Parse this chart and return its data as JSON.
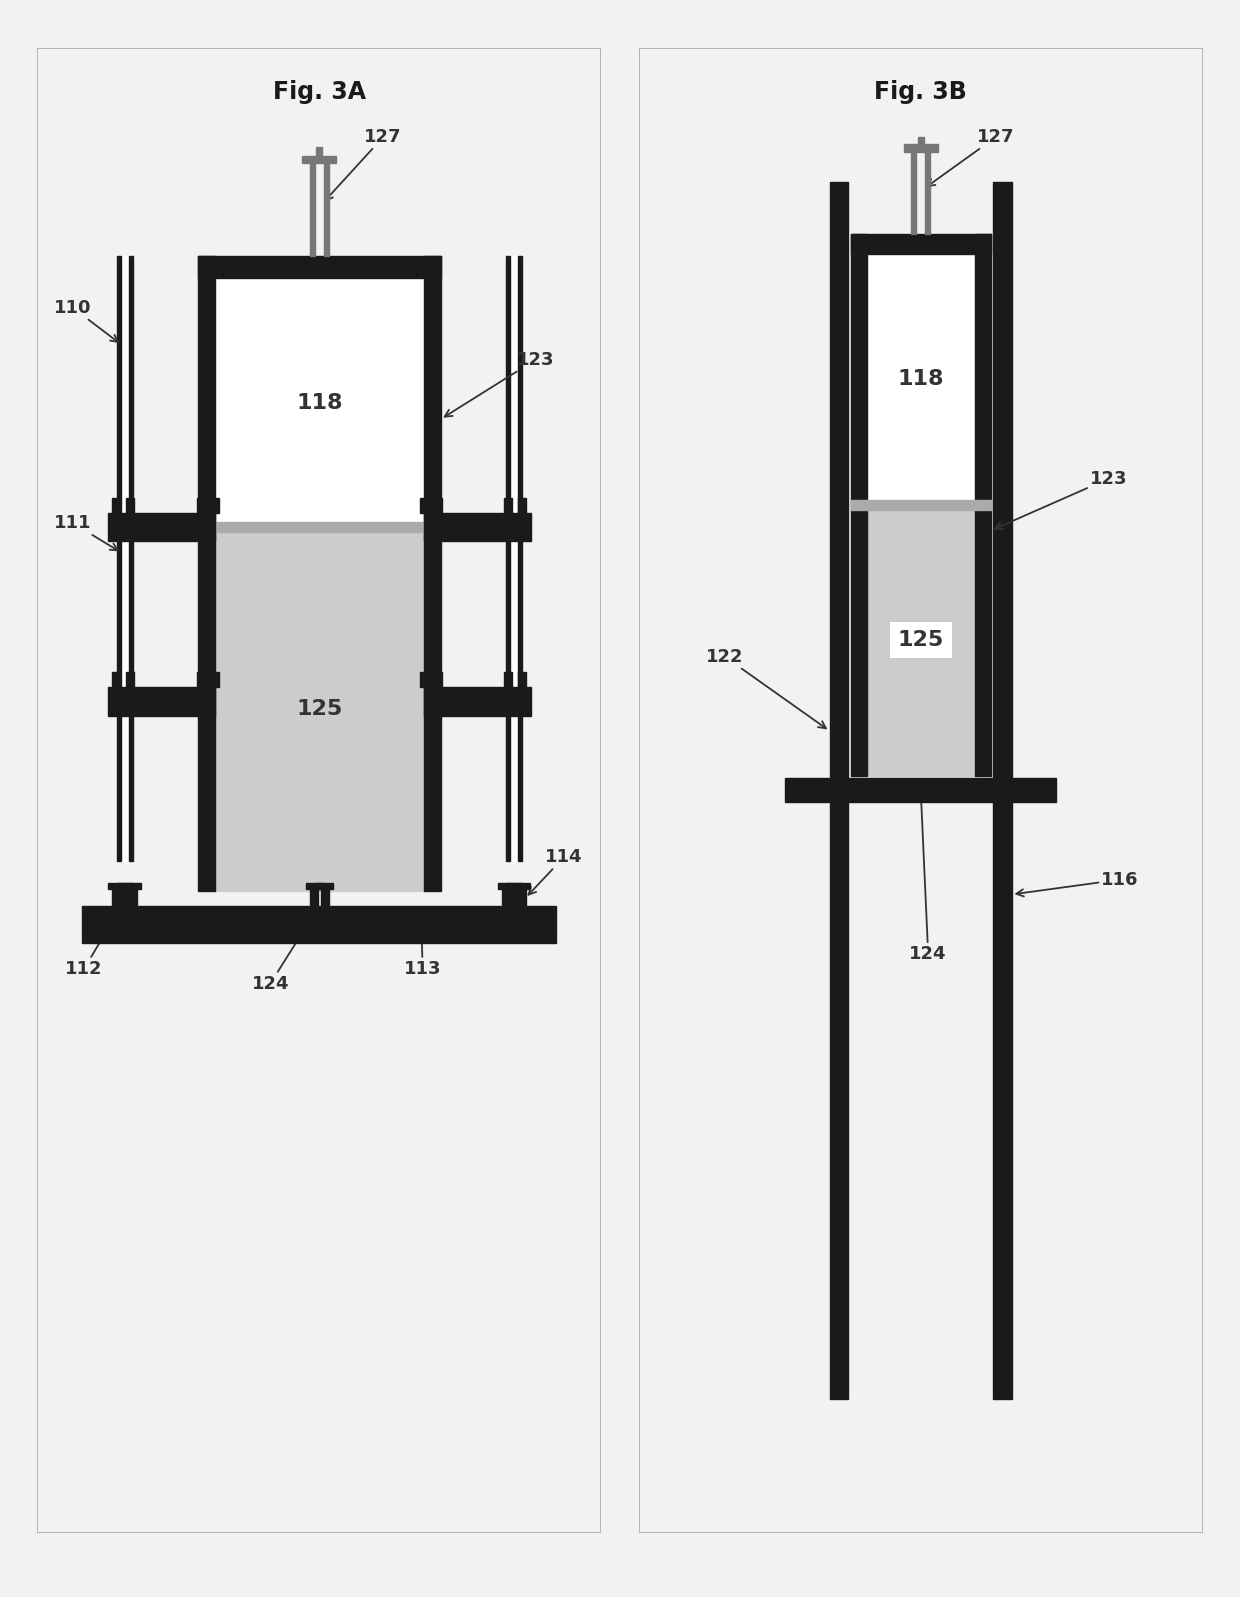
{
  "fig_title_A": "Fig. 3A",
  "fig_title_B": "Fig. 3B",
  "bg_color": "#f2f2f2",
  "panel_bg": "#ffffff",
  "black": "#1a1a1a",
  "sand_color": "#cccccc",
  "white": "#ffffff",
  "label_color": "#333333",
  "label_fontsize": 13,
  "title_fontsize": 17
}
